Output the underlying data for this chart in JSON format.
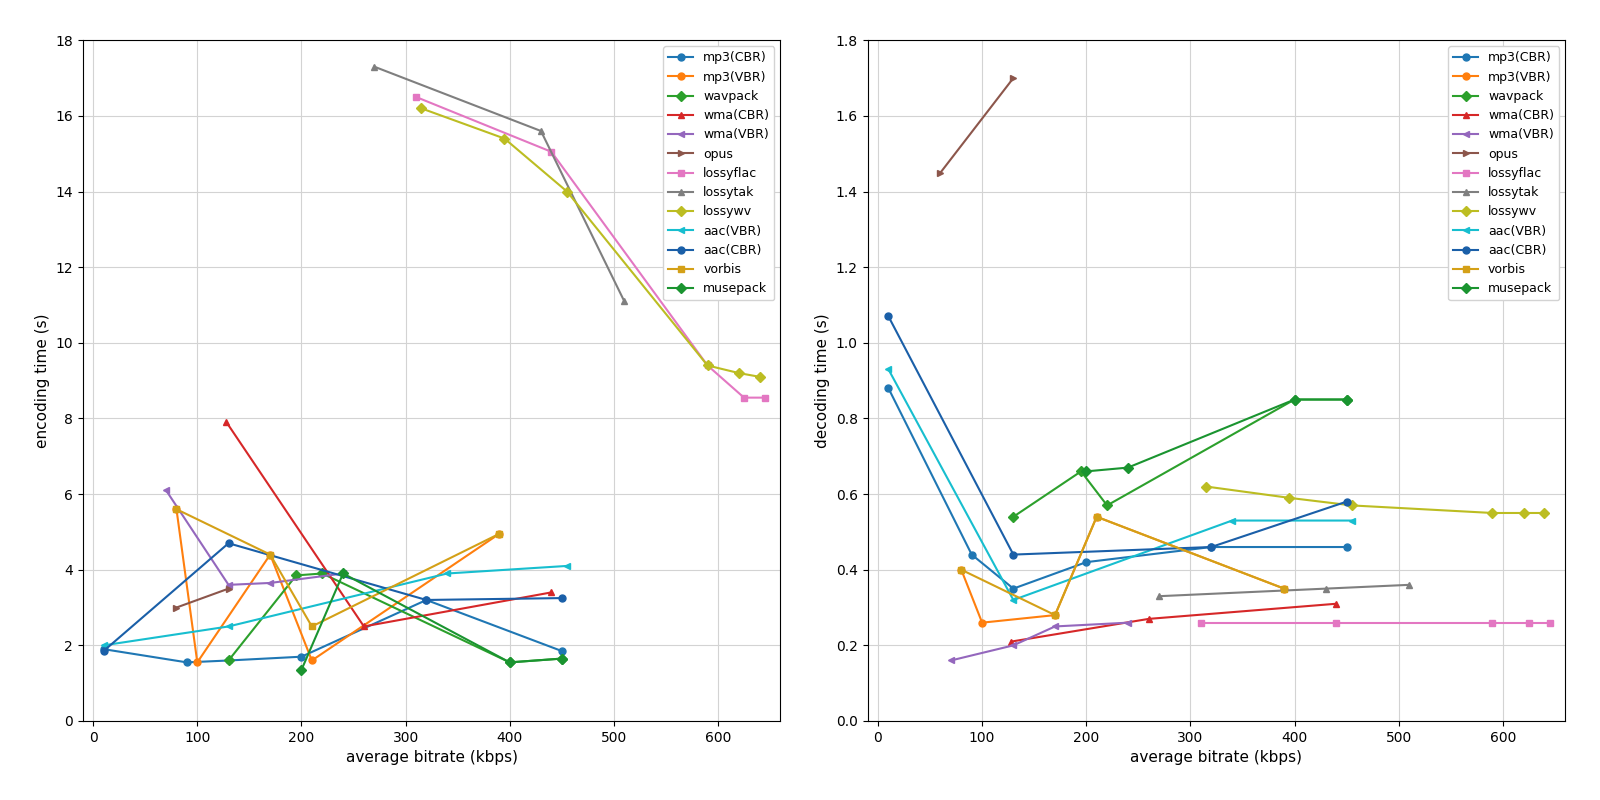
{
  "codecs": [
    "mp3(CBR)",
    "mp3(VBR)",
    "wavpack",
    "wma(CBR)",
    "wma(VBR)",
    "opus",
    "lossyflac",
    "lossytak",
    "lossywv",
    "aac(VBR)",
    "aac(CBR)",
    "vorbis",
    "musepack"
  ],
  "colors": {
    "mp3(CBR)": "#1f77b4",
    "mp3(VBR)": "#ff7f0e",
    "wavpack": "#2ca02c",
    "wma(CBR)": "#d62728",
    "wma(VBR)": "#9467bd",
    "opus": "#8c564b",
    "lossyflac": "#e377c2",
    "lossytak": "#7f7f7f",
    "lossywv": "#bcbd22",
    "aac(VBR)": "#17becf",
    "aac(CBR)": "#1a5fa8",
    "vorbis": "#d4a017",
    "musepack": "#1a9430"
  },
  "markers": {
    "mp3(CBR)": "o",
    "mp3(VBR)": "o",
    "wavpack": "D",
    "wma(CBR)": "^",
    "wma(VBR)": "<",
    "opus": ">",
    "lossyflac": "s",
    "lossytak": "^",
    "lossywv": "D",
    "aac(VBR)": "<",
    "aac(CBR)": "o",
    "vorbis": "s",
    "musepack": "D"
  },
  "enc_data": {
    "mp3(CBR)": {
      "x": [
        10,
        90,
        130,
        200,
        320,
        450
      ],
      "y": [
        1.9,
        1.55,
        1.6,
        1.7,
        3.2,
        1.85
      ]
    },
    "mp3(VBR)": {
      "x": [
        80,
        100,
        170,
        210,
        390
      ],
      "y": [
        5.6,
        1.55,
        4.4,
        1.6,
        4.95
      ]
    },
    "wavpack": {
      "x": [
        130,
        195,
        220,
        400,
        450
      ],
      "y": [
        1.6,
        3.85,
        3.9,
        1.55,
        1.65
      ]
    },
    "wma(CBR)": {
      "x": [
        128,
        260,
        440
      ],
      "y": [
        7.9,
        2.5,
        3.4
      ]
    },
    "wma(VBR)": {
      "x": [
        70,
        130,
        170,
        240
      ],
      "y": [
        6.1,
        3.6,
        3.65,
        3.9
      ]
    },
    "opus": {
      "x": [
        80,
        130
      ],
      "y": [
        3.0,
        3.5
      ]
    },
    "lossyflac": {
      "x": [
        310,
        440,
        590,
        625,
        645
      ],
      "y": [
        16.5,
        15.05,
        9.4,
        8.55,
        8.55
      ]
    },
    "lossytak": {
      "x": [
        270,
        430,
        510
      ],
      "y": [
        17.3,
        15.6,
        11.1
      ]
    },
    "lossywv": {
      "x": [
        315,
        395,
        455,
        590,
        620,
        640
      ],
      "y": [
        16.2,
        15.4,
        14.0,
        9.4,
        9.2,
        9.1
      ]
    },
    "aac(VBR)": {
      "x": [
        10,
        130,
        340,
        455
      ],
      "y": [
        2.0,
        2.5,
        3.9,
        4.1
      ]
    },
    "aac(CBR)": {
      "x": [
        10,
        130,
        320,
        450
      ],
      "y": [
        1.85,
        4.7,
        3.2,
        3.25
      ]
    },
    "vorbis": {
      "x": [
        80,
        170,
        210,
        390
      ],
      "y": [
        5.6,
        4.4,
        2.5,
        4.95
      ]
    },
    "musepack": {
      "x": [
        200,
        240,
        400,
        450
      ],
      "y": [
        1.35,
        3.9,
        1.55,
        1.65
      ]
    }
  },
  "dec_data": {
    "mp3(CBR)": {
      "x": [
        10,
        90,
        130,
        200,
        320,
        450
      ],
      "y": [
        0.88,
        0.44,
        0.35,
        0.42,
        0.46,
        0.46
      ]
    },
    "mp3(VBR)": {
      "x": [
        80,
        100,
        170,
        210,
        390
      ],
      "y": [
        0.4,
        0.26,
        0.28,
        0.54,
        0.35
      ]
    },
    "wavpack": {
      "x": [
        130,
        195,
        220,
        400,
        450
      ],
      "y": [
        0.54,
        0.66,
        0.57,
        0.85,
        0.85
      ]
    },
    "wma(CBR)": {
      "x": [
        128,
        260,
        440
      ],
      "y": [
        0.21,
        0.27,
        0.31
      ]
    },
    "wma(VBR)": {
      "x": [
        70,
        130,
        170,
        240
      ],
      "y": [
        0.16,
        0.2,
        0.25,
        0.26
      ]
    },
    "opus": {
      "x": [
        60,
        130
      ],
      "y": [
        1.45,
        1.7
      ]
    },
    "lossyflac": {
      "x": [
        310,
        440,
        590,
        625,
        645
      ],
      "y": [
        0.26,
        0.26,
        0.26,
        0.26,
        0.26
      ]
    },
    "lossytak": {
      "x": [
        270,
        430,
        510
      ],
      "y": [
        0.33,
        0.35,
        0.36
      ]
    },
    "lossywv": {
      "x": [
        315,
        395,
        455,
        590,
        620,
        640
      ],
      "y": [
        0.62,
        0.59,
        0.57,
        0.55,
        0.55,
        0.55
      ]
    },
    "aac(VBR)": {
      "x": [
        10,
        130,
        340,
        455
      ],
      "y": [
        0.93,
        0.32,
        0.53,
        0.53
      ]
    },
    "aac(CBR)": {
      "x": [
        10,
        130,
        320,
        450
      ],
      "y": [
        1.07,
        0.44,
        0.46,
        0.58
      ]
    },
    "vorbis": {
      "x": [
        80,
        170,
        210,
        390
      ],
      "y": [
        0.4,
        0.28,
        0.54,
        0.35
      ]
    },
    "musepack": {
      "x": [
        200,
        240,
        400,
        450
      ],
      "y": [
        0.66,
        0.67,
        0.85,
        0.85
      ]
    }
  },
  "enc_xlim": [
    -10,
    660
  ],
  "enc_ylim": [
    0,
    18
  ],
  "dec_xlim": [
    -10,
    660
  ],
  "dec_ylim": [
    0,
    1.8
  ],
  "enc_ylabel": "encoding time (s)",
  "dec_ylabel": "decoding time (s)",
  "xlabel": "average bitrate (kbps)"
}
